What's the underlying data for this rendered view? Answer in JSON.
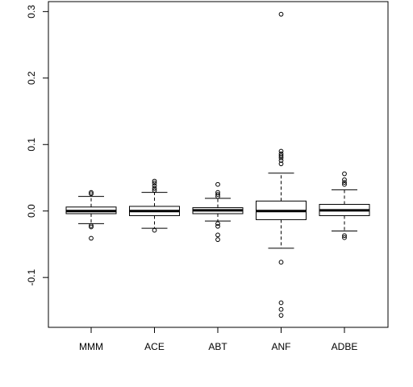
{
  "chart_data": {
    "type": "boxplot",
    "title": "",
    "xlabel": "",
    "ylabel": "",
    "ylim": [
      -0.175,
      0.315
    ],
    "y_ticks": [
      -0.1,
      0.0,
      0.1,
      0.2,
      0.3
    ],
    "y_tick_labels": [
      "-0.1",
      "0.0",
      "0.1",
      "0.2",
      "0.3"
    ],
    "categories": [
      "MMM",
      "ACE",
      "ABT",
      "ANF",
      "ADBE"
    ],
    "boxes": [
      {
        "name": "MMM",
        "q1": -0.004,
        "median": 0.0,
        "q3": 0.006,
        "whisker_low": -0.019,
        "whisker_high": 0.022,
        "outliers": [
          0.028,
          0.026,
          -0.022,
          -0.024,
          -0.041
        ]
      },
      {
        "name": "ACE",
        "q1": -0.007,
        "median": 0.0,
        "q3": 0.007,
        "whisker_low": -0.026,
        "whisker_high": 0.028,
        "outliers": [
          0.045,
          0.042,
          0.038,
          0.034,
          0.031,
          -0.029
        ]
      },
      {
        "name": "ABT",
        "q1": -0.004,
        "median": 0.001,
        "q3": 0.005,
        "whisker_low": -0.015,
        "whisker_high": 0.019,
        "outliers": [
          0.04,
          0.028,
          0.025,
          0.022,
          -0.019,
          -0.023,
          -0.036,
          -0.043
        ]
      },
      {
        "name": "ANF",
        "q1": -0.013,
        "median": 0.0,
        "q3": 0.015,
        "whisker_low": -0.056,
        "whisker_high": 0.057,
        "outliers": [
          0.296,
          0.09,
          0.086,
          0.083,
          0.08,
          0.076,
          0.071,
          -0.077,
          -0.138,
          -0.148,
          -0.157
        ]
      },
      {
        "name": "ADBE",
        "q1": -0.007,
        "median": 0.001,
        "q3": 0.01,
        "whisker_low": -0.03,
        "whisker_high": 0.032,
        "outliers": [
          0.056,
          0.047,
          0.043,
          0.04,
          -0.037,
          -0.04
        ]
      }
    ]
  }
}
